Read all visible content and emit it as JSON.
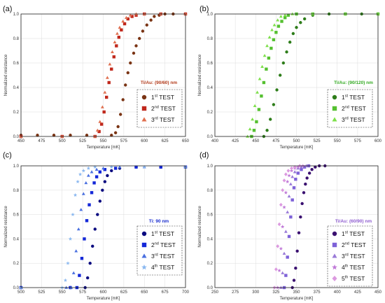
{
  "chart_data": [
    {
      "type": "scatter",
      "panel_label": "(a)",
      "title": "Ti/Au: (90/60) nm",
      "title_color": "#b33a1a",
      "xlabel": "Temperature [mK]",
      "ylabel": "Normalized resistance",
      "xlim": [
        450,
        650
      ],
      "ylim": [
        0,
        1.0
      ],
      "xticks": [
        450,
        475,
        500,
        525,
        550,
        575,
        600,
        625,
        650
      ],
      "yticks": [
        0.0,
        0.2,
        0.4,
        0.6,
        0.8,
        1.0
      ],
      "grid": true,
      "legend_position": "right",
      "series": [
        {
          "name": "1",
          "sup": "st",
          "suffix": " TEST",
          "marker": "circle",
          "color": "#7a3414",
          "x": [
            450,
            470,
            490,
            510,
            530,
            560,
            565,
            568,
            571,
            574,
            577,
            580,
            583,
            587,
            590,
            594,
            598,
            603,
            608,
            612,
            618,
            625,
            635,
            650
          ],
          "y": [
            0.01,
            0.01,
            0.01,
            0.01,
            0.01,
            0.01,
            0.03,
            0.08,
            0.18,
            0.3,
            0.42,
            0.52,
            0.6,
            0.68,
            0.74,
            0.8,
            0.86,
            0.91,
            0.95,
            0.98,
            0.99,
            1.0,
            1.0,
            1.0
          ]
        },
        {
          "name": "2",
          "sup": "nd",
          "suffix": " TEST",
          "marker": "square",
          "color": "#c0281c",
          "x": [
            450,
            500,
            540,
            545,
            548,
            551,
            554,
            557,
            560,
            563,
            566,
            569,
            572,
            576,
            580,
            585,
            590,
            600,
            620,
            650
          ],
          "y": [
            0.0,
            0.0,
            0.0,
            0.04,
            0.1,
            0.2,
            0.32,
            0.44,
            0.55,
            0.65,
            0.74,
            0.81,
            0.87,
            0.92,
            0.96,
            0.98,
            0.99,
            1.0,
            1.0,
            1.0
          ]
        },
        {
          "name": "3",
          "sup": "rd",
          "suffix": " TEST",
          "marker": "triangle",
          "color": "#e07050",
          "x": [
            450,
            500,
            540,
            543,
            546,
            549,
            552,
            555,
            558,
            561,
            564,
            567,
            570,
            574,
            578,
            583,
            590,
            600,
            620,
            650
          ],
          "y": [
            0.0,
            0.0,
            0.0,
            0.05,
            0.12,
            0.24,
            0.36,
            0.48,
            0.59,
            0.69,
            0.77,
            0.84,
            0.89,
            0.94,
            0.97,
            0.99,
            1.0,
            1.0,
            1.0,
            1.0
          ]
        }
      ]
    },
    {
      "type": "scatter",
      "panel_label": "(b)",
      "title": "Ti/Au: (90/120) nm",
      "title_color": "#33aa22",
      "xlabel": "Temperature [mK]",
      "ylabel": "Normalized resistance",
      "xlim": [
        400,
        600
      ],
      "ylim": [
        0,
        1.0
      ],
      "xticks": [
        400,
        425,
        450,
        475,
        500,
        525,
        550,
        575,
        600
      ],
      "yticks": [
        0.0,
        0.2,
        0.4,
        0.6,
        0.8,
        1.0
      ],
      "grid": true,
      "legend_position": "right",
      "series": [
        {
          "name": "1",
          "sup": "st",
          "suffix": " TEST",
          "marker": "circle",
          "color": "#2e7d1a",
          "x": [
            460,
            464,
            468,
            472,
            476,
            480,
            484,
            488,
            492,
            496,
            500,
            505,
            510,
            520,
            540,
            560,
            580,
            600
          ],
          "y": [
            0.0,
            0.05,
            0.14,
            0.26,
            0.38,
            0.5,
            0.6,
            0.69,
            0.77,
            0.84,
            0.89,
            0.93,
            0.96,
            0.99,
            1.0,
            1.0,
            1.0,
            1.0
          ]
        },
        {
          "name": "2",
          "sup": "nd",
          "suffix": " TEST",
          "marker": "square",
          "color": "#55c030",
          "x": [
            445,
            448,
            451,
            454,
            457,
            460,
            463,
            466,
            469,
            472,
            475,
            478,
            482,
            486,
            490,
            500,
            520,
            560,
            600
          ],
          "y": [
            0.0,
            0.05,
            0.12,
            0.22,
            0.33,
            0.44,
            0.55,
            0.64,
            0.72,
            0.79,
            0.85,
            0.9,
            0.94,
            0.97,
            0.99,
            1.0,
            1.0,
            1.0,
            1.0
          ]
        },
        {
          "name": "3",
          "sup": "rd",
          "suffix": " TEST",
          "marker": "triangle",
          "color": "#7ee04a",
          "x": [
            440,
            443,
            446,
            449,
            452,
            455,
            458,
            461,
            464,
            467,
            470,
            473,
            477,
            481,
            486,
            495,
            520,
            560,
            600
          ],
          "y": [
            0.0,
            0.06,
            0.14,
            0.25,
            0.36,
            0.47,
            0.57,
            0.66,
            0.74,
            0.81,
            0.87,
            0.91,
            0.95,
            0.98,
            0.99,
            1.0,
            1.0,
            1.0,
            1.0
          ]
        }
      ]
    },
    {
      "type": "scatter",
      "panel_label": "(c)",
      "title": "Ti: 90 nm",
      "title_color": "#1a2ed0",
      "xlabel": "Temperature [mK]",
      "ylabel": "Normalized resistance",
      "xlim": [
        500,
        700
      ],
      "ylim": [
        0,
        1.0
      ],
      "xticks": [
        500,
        525,
        550,
        575,
        600,
        625,
        650,
        675,
        700
      ],
      "yticks": [
        0.0,
        0.2,
        0.4,
        0.6,
        0.8,
        1.0
      ],
      "grid": true,
      "legend_position": "right",
      "series": [
        {
          "name": "1",
          "sup": "st",
          "suffix": " TEST",
          "marker": "circle",
          "color": "#0a0a80",
          "x": [
            500,
            560,
            578,
            581,
            584,
            587,
            590,
            593,
            596,
            599,
            602,
            605,
            610,
            620,
            640,
            670,
            700
          ],
          "y": [
            0.0,
            0.0,
            0.0,
            0.08,
            0.2,
            0.34,
            0.48,
            0.6,
            0.71,
            0.8,
            0.87,
            0.92,
            0.96,
            0.98,
            0.99,
            0.99,
            0.99
          ]
        },
        {
          "name": "2",
          "sup": "nd",
          "suffix": " TEST",
          "marker": "square",
          "color": "#1428d8",
          "x": [
            500,
            560,
            568,
            571,
            574,
            577,
            580,
            583,
            586,
            589,
            592,
            596,
            602,
            615,
            640,
            670,
            700
          ],
          "y": [
            0.0,
            0.0,
            0.0,
            0.1,
            0.24,
            0.4,
            0.55,
            0.68,
            0.78,
            0.86,
            0.91,
            0.95,
            0.97,
            0.98,
            0.99,
            0.99,
            0.99
          ]
        },
        {
          "name": "3",
          "sup": "rd",
          "suffix": " TEST",
          "marker": "triangle",
          "color": "#4a70e0",
          "x": [
            500,
            555,
            561,
            564,
            567,
            570,
            573,
            576,
            579,
            582,
            586,
            592,
            600,
            620,
            650,
            700
          ],
          "y": [
            0.0,
            0.0,
            0.0,
            0.12,
            0.3,
            0.48,
            0.64,
            0.77,
            0.86,
            0.92,
            0.95,
            0.97,
            0.98,
            0.99,
            0.99,
            0.99
          ]
        },
        {
          "name": "4",
          "sup": "th",
          "suffix": " TEST",
          "marker": "star",
          "color": "#8ab8f0",
          "x": [
            500,
            550,
            554,
            557,
            560,
            563,
            566,
            569,
            572,
            576,
            582,
            590,
            610,
            650,
            700
          ],
          "y": [
            0.0,
            0.0,
            0.06,
            0.2,
            0.4,
            0.6,
            0.76,
            0.87,
            0.93,
            0.96,
            0.98,
            0.99,
            0.99,
            0.99,
            0.99
          ]
        }
      ]
    },
    {
      "type": "scatter",
      "panel_label": "(d)",
      "title": "Ti/Au: (60/90) nm",
      "title_color": "#8e5cd0",
      "xlabel": "Temperature [mK]",
      "ylabel": "Normalized resistance",
      "xlim": [
        250,
        450
      ],
      "ylim": [
        0,
        1.0
      ],
      "xticks": [
        250,
        275,
        300,
        325,
        350,
        375,
        400,
        425,
        450
      ],
      "yticks": [
        0.0,
        0.2,
        0.4,
        0.6,
        0.8,
        1.0
      ],
      "grid": true,
      "legend_position": "right",
      "series": [
        {
          "name": "1",
          "sup": "st",
          "suffix": " TEST",
          "marker": "circle",
          "color": "#3a1070",
          "x": [
            345,
            347,
            349,
            351,
            353,
            355,
            357,
            359,
            361,
            363,
            366,
            369,
            373,
            378,
            385
          ],
          "y": [
            0.0,
            0.06,
            0.16,
            0.3,
            0.45,
            0.58,
            0.69,
            0.78,
            0.85,
            0.9,
            0.94,
            0.97,
            0.99,
            1.0,
            1.0
          ]
        },
        {
          "name": "2",
          "sup": "nd",
          "suffix": " TEST",
          "marker": "square",
          "color": "#7e62d8",
          "x": [
            335,
            337,
            339,
            341,
            343,
            345,
            347,
            349,
            352,
            356,
            360,
            365
          ],
          "y": [
            0.0,
            0.1,
            0.25,
            0.42,
            0.58,
            0.72,
            0.82,
            0.89,
            0.94,
            0.97,
            0.99,
            1.0
          ]
        },
        {
          "name": "3",
          "sup": "rd",
          "suffix": " TEST",
          "marker": "triangle",
          "color": "#9a7ad8",
          "x": [
            331,
            333,
            335,
            337,
            339,
            341,
            343,
            345,
            348,
            352,
            356,
            362
          ],
          "y": [
            0.0,
            0.12,
            0.28,
            0.46,
            0.62,
            0.75,
            0.85,
            0.91,
            0.95,
            0.98,
            0.99,
            1.0
          ]
        },
        {
          "name": "4",
          "sup": "th",
          "suffix": " TEST",
          "marker": "star",
          "color": "#c07ad8",
          "x": [
            327,
            329,
            331,
            333,
            335,
            337,
            339,
            341,
            344,
            348,
            352,
            358
          ],
          "y": [
            0.0,
            0.14,
            0.32,
            0.5,
            0.66,
            0.78,
            0.87,
            0.92,
            0.96,
            0.98,
            0.99,
            1.0
          ]
        },
        {
          "name": "5",
          "sup": "th",
          "suffix": " TEST",
          "marker": "diamond",
          "color": "#dc9ae0",
          "x": [
            323,
            325,
            327,
            329,
            331,
            333,
            335,
            337,
            340,
            344,
            348,
            354
          ],
          "y": [
            0.0,
            0.15,
            0.34,
            0.52,
            0.68,
            0.8,
            0.88,
            0.93,
            0.96,
            0.98,
            0.99,
            1.0
          ]
        }
      ]
    }
  ]
}
